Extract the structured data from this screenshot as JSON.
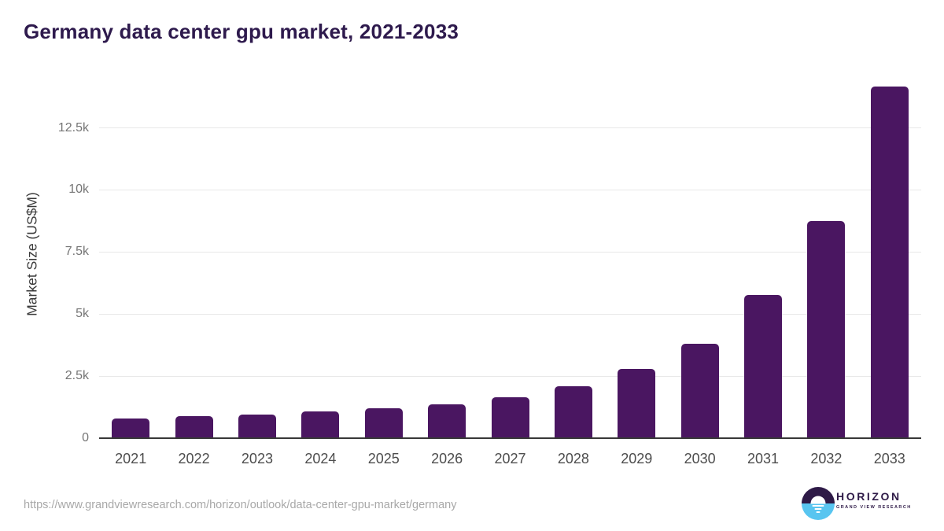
{
  "title": "Germany data center gpu market, 2021-2033",
  "chart_data": {
    "type": "bar",
    "title": "Germany data center gpu market, 2021-2033",
    "categories": [
      "2021",
      "2022",
      "2023",
      "2024",
      "2025",
      "2026",
      "2027",
      "2028",
      "2029",
      "2030",
      "2031",
      "2032",
      "2033"
    ],
    "values": [
      790,
      900,
      960,
      1070,
      1210,
      1375,
      1660,
      2085,
      2780,
      3790,
      5760,
      8750,
      14150
    ],
    "xlabel": "",
    "ylabel": "Market Size (US$M)",
    "ylim": [
      0,
      14500
    ],
    "yticks": [
      {
        "value": 0,
        "label": "0"
      },
      {
        "value": 2500,
        "label": "2.5k"
      },
      {
        "value": 5000,
        "label": "5k"
      },
      {
        "value": 7500,
        "label": "7.5k"
      },
      {
        "value": 10000,
        "label": "10k"
      },
      {
        "value": 12500,
        "label": "12.5k"
      }
    ],
    "grid": true,
    "legend": "none",
    "bar_color": "#4a1661"
  },
  "footer": {
    "source_url": "https://www.grandviewresearch.com/horizon/outlook/data-center-gpu-market/germany",
    "brand": {
      "name": "HORIZON",
      "tagline": "GRAND VIEW RESEARCH"
    }
  },
  "colors": {
    "title": "#2e1a4d",
    "bar": "#4a1661",
    "gridline": "#e8e8e8",
    "axis_line": "#383838",
    "y_tick_label": "#757575",
    "x_tick_label": "#4d4d4d",
    "y_axis_title": "#3a3a3a",
    "source_url": "#a8a8a8",
    "logo_purple": "#2e1a47",
    "logo_blue": "#58c5f0",
    "background": "#ffffff"
  }
}
